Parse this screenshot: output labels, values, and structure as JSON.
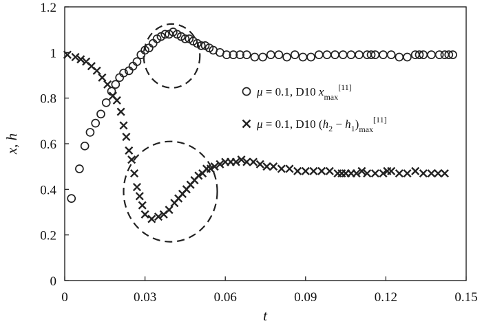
{
  "chart_data": {
    "type": "scatter",
    "xlabel": "t",
    "ylabel": "x, h",
    "xlim": [
      0,
      0.15
    ],
    "ylim": [
      0,
      1.2
    ],
    "x_ticks": [
      0,
      0.03,
      0.06,
      0.09,
      0.12,
      0.15
    ],
    "x_tick_labels": [
      "0",
      "0.03",
      "0.06",
      "0.09",
      "0.12",
      "0.15"
    ],
    "y_ticks": [
      0,
      0.2,
      0.4,
      0.6,
      0.8,
      1.0,
      1.2
    ],
    "y_tick_labels": [
      "0",
      "0.2",
      "0.4",
      "0.6",
      "0.8",
      "1",
      "1.2"
    ],
    "grid": false,
    "legend_position": "right",
    "series": [
      {
        "name": "μ = 0.1, D10 x_max [11]",
        "legend": {
          "mu": "μ",
          "rest": " = 0.1,   D10 ",
          "var": "x",
          "sub": "max",
          "ref": "[11]"
        },
        "marker": "circle",
        "color": "#222222",
        "x": [
          0.0025,
          0.0055,
          0.0075,
          0.0095,
          0.0115,
          0.0135,
          0.0155,
          0.0175,
          0.019,
          0.0205,
          0.022,
          0.024,
          0.0255,
          0.027,
          0.0285,
          0.03,
          0.0315,
          0.033,
          0.0345,
          0.036,
          0.0375,
          0.039,
          0.0405,
          0.042,
          0.0435,
          0.045,
          0.0465,
          0.048,
          0.0495,
          0.051,
          0.0525,
          0.054,
          0.0555,
          0.058,
          0.0605,
          0.063,
          0.0655,
          0.068,
          0.071,
          0.074,
          0.077,
          0.08,
          0.083,
          0.086,
          0.089,
          0.092,
          0.095,
          0.098,
          0.101,
          0.104,
          0.107,
          0.11,
          0.113,
          0.1145,
          0.116,
          0.119,
          0.122,
          0.125,
          0.128,
          0.131,
          0.1325,
          0.134,
          0.137,
          0.14,
          0.142,
          0.1435,
          0.145
        ],
        "y": [
          0.36,
          0.49,
          0.59,
          0.65,
          0.69,
          0.73,
          0.78,
          0.83,
          0.86,
          0.89,
          0.91,
          0.92,
          0.94,
          0.96,
          0.99,
          1.01,
          1.02,
          1.04,
          1.06,
          1.07,
          1.08,
          1.08,
          1.09,
          1.08,
          1.07,
          1.06,
          1.06,
          1.05,
          1.04,
          1.03,
          1.03,
          1.02,
          1.01,
          1.0,
          0.99,
          0.99,
          0.99,
          0.99,
          0.98,
          0.98,
          0.99,
          0.99,
          0.98,
          0.99,
          0.98,
          0.98,
          0.99,
          0.99,
          0.99,
          0.99,
          0.99,
          0.99,
          0.99,
          0.99,
          0.99,
          0.99,
          0.99,
          0.98,
          0.98,
          0.99,
          0.99,
          0.99,
          0.99,
          0.99,
          0.99,
          0.99,
          0.99
        ]
      },
      {
        "name": "μ = 0.1, D10 (h2 − h1)max [11]",
        "legend": {
          "mu": "μ",
          "rest": " = 0.1,   D10 (",
          "var": "h",
          "sub": "2",
          "mid": " − ",
          "var2": "h",
          "sub2": "1",
          "close": ")",
          "sub3": "max",
          "ref": "[11]"
        },
        "marker": "x",
        "color": "#222222",
        "x": [
          0.001,
          0.004,
          0.006,
          0.008,
          0.01,
          0.012,
          0.014,
          0.016,
          0.018,
          0.0195,
          0.021,
          0.022,
          0.023,
          0.024,
          0.025,
          0.026,
          0.027,
          0.028,
          0.029,
          0.03,
          0.0325,
          0.035,
          0.037,
          0.039,
          0.041,
          0.0425,
          0.044,
          0.0455,
          0.047,
          0.0485,
          0.05,
          0.0515,
          0.053,
          0.0545,
          0.056,
          0.058,
          0.06,
          0.062,
          0.064,
          0.066,
          0.068,
          0.0705,
          0.073,
          0.0755,
          0.078,
          0.081,
          0.084,
          0.087,
          0.09,
          0.093,
          0.096,
          0.099,
          0.102,
          0.1035,
          0.105,
          0.107,
          0.109,
          0.111,
          0.113,
          0.116,
          0.119,
          0.1205,
          0.122,
          0.125,
          0.128,
          0.131,
          0.134,
          0.137,
          0.1395,
          0.142
        ],
        "y": [
          0.99,
          0.98,
          0.97,
          0.96,
          0.94,
          0.92,
          0.89,
          0.86,
          0.81,
          0.79,
          0.74,
          0.68,
          0.63,
          0.57,
          0.53,
          0.47,
          0.41,
          0.37,
          0.33,
          0.29,
          0.27,
          0.28,
          0.29,
          0.31,
          0.34,
          0.36,
          0.38,
          0.4,
          0.42,
          0.44,
          0.46,
          0.47,
          0.49,
          0.49,
          0.5,
          0.51,
          0.52,
          0.52,
          0.52,
          0.53,
          0.52,
          0.52,
          0.51,
          0.5,
          0.5,
          0.49,
          0.49,
          0.48,
          0.48,
          0.48,
          0.48,
          0.48,
          0.47,
          0.47,
          0.47,
          0.47,
          0.47,
          0.48,
          0.47,
          0.47,
          0.47,
          0.48,
          0.48,
          0.47,
          0.47,
          0.48,
          0.47,
          0.47,
          0.47,
          0.47
        ]
      }
    ],
    "annotations": [
      {
        "type": "dashed-ellipse",
        "cx": 0.04,
        "cy": 0.985,
        "rx": 0.0105,
        "ry": 0.14
      },
      {
        "type": "dashed-ellipse",
        "cx": 0.0395,
        "cy": 0.39,
        "rx": 0.0175,
        "ry": 0.22
      }
    ]
  }
}
